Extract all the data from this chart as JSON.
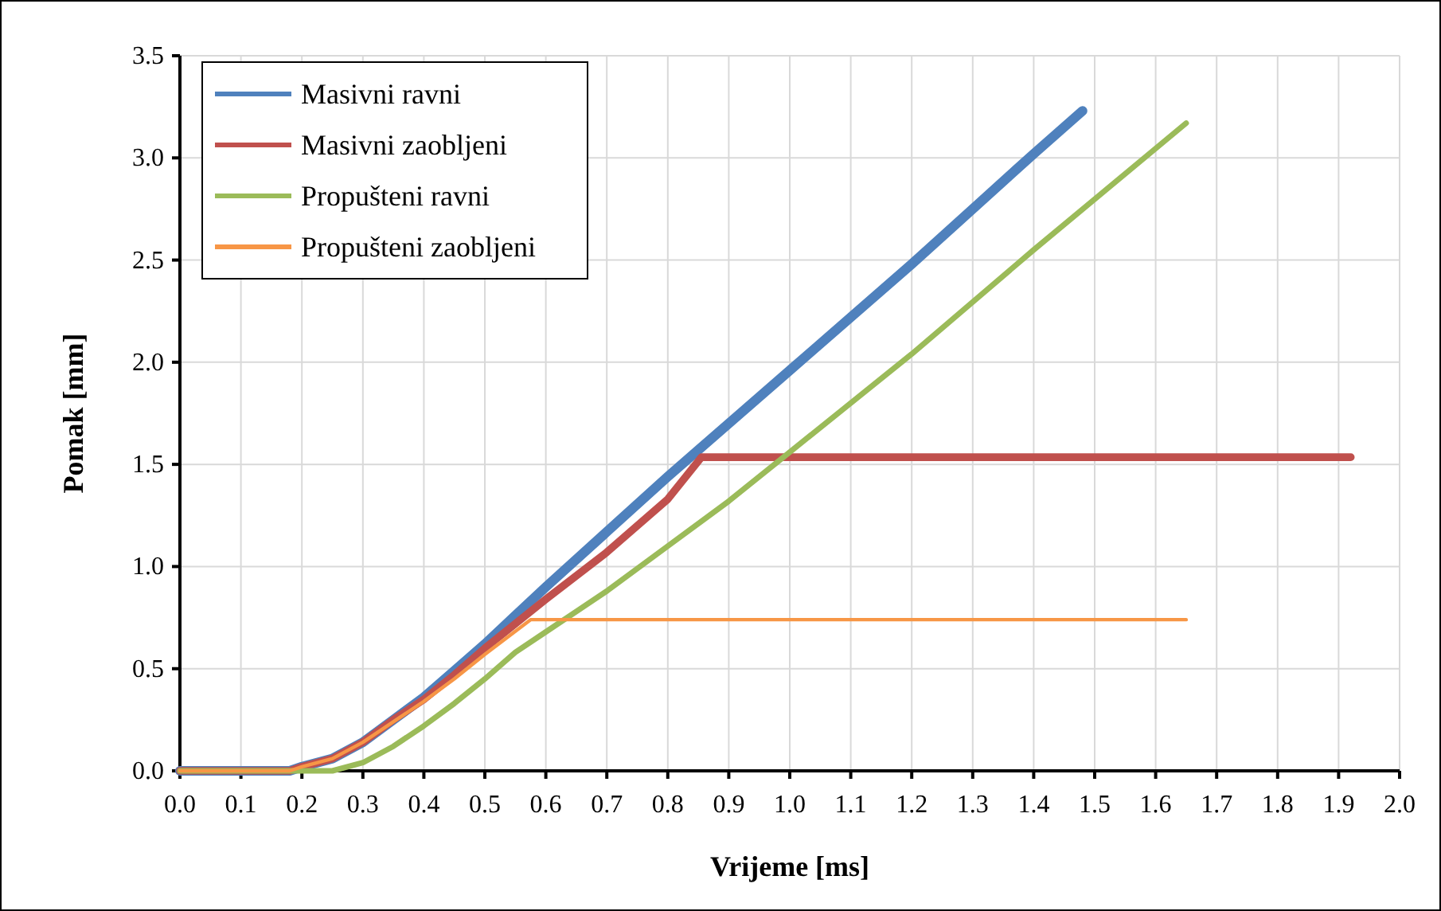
{
  "chart_data": {
    "type": "line",
    "xlabel": "Vrijeme [ms]",
    "ylabel": "Pomak [mm]",
    "xlim": [
      0,
      2
    ],
    "ylim": [
      0,
      3.5
    ],
    "xticks": [
      {
        "value": 0,
        "label": "0.0"
      },
      {
        "value": 0.1,
        "label": "0.1"
      },
      {
        "value": 0.2,
        "label": "0.2"
      },
      {
        "value": 0.3,
        "label": "0.3"
      },
      {
        "value": 0.4,
        "label": "0.4"
      },
      {
        "value": 0.5,
        "label": "0.5"
      },
      {
        "value": 0.6,
        "label": "0.6"
      },
      {
        "value": 0.7,
        "label": "0.7"
      },
      {
        "value": 0.8,
        "label": "0.8"
      },
      {
        "value": 0.9,
        "label": "0.9"
      },
      {
        "value": 1,
        "label": "1.0"
      },
      {
        "value": 1.1,
        "label": "1.1"
      },
      {
        "value": 1.2,
        "label": "1.2"
      },
      {
        "value": 1.3,
        "label": "1.3"
      },
      {
        "value": 1.4,
        "label": "1.4"
      },
      {
        "value": 1.5,
        "label": "1.5"
      },
      {
        "value": 1.6,
        "label": "1.6"
      },
      {
        "value": 1.7,
        "label": "1.7"
      },
      {
        "value": 1.8,
        "label": "1.8"
      },
      {
        "value": 1.9,
        "label": "1.9"
      },
      {
        "value": 2,
        "label": "2.0"
      }
    ],
    "yticks": [
      {
        "value": 0,
        "label": "0.0"
      },
      {
        "value": 0.5,
        "label": "0.5"
      },
      {
        "value": 1,
        "label": "1.0"
      },
      {
        "value": 1.5,
        "label": "1.5"
      },
      {
        "value": 2,
        "label": "2.0"
      },
      {
        "value": 2.5,
        "label": "2.5"
      },
      {
        "value": 3,
        "label": "3.0"
      },
      {
        "value": 3.5,
        "label": "3.5"
      }
    ],
    "grid": true,
    "legend": "top left",
    "marker": "none",
    "line_style": "solid",
    "series": [
      {
        "name": "Masivni ravni",
        "color": "#4f81bd",
        "x": [
          0,
          0.18,
          0.2,
          0.25,
          0.3,
          0.35,
          0.4,
          0.45,
          0.5,
          0.55,
          0.6,
          0.7,
          0.8,
          0.85,
          1.0,
          1.2,
          1.4,
          1.48
        ],
        "values": [
          0,
          0,
          0.02,
          0.06,
          0.14,
          0.25,
          0.36,
          0.49,
          0.62,
          0.76,
          0.9,
          1.17,
          1.44,
          1.57,
          1.96,
          2.48,
          3.02,
          3.23
        ]
      },
      {
        "name": "Masivni zaobljeni",
        "color": "#c0504d",
        "x": [
          0,
          0.18,
          0.2,
          0.25,
          0.3,
          0.35,
          0.4,
          0.45,
          0.5,
          0.55,
          0.6,
          0.7,
          0.8,
          0.855,
          1.92
        ],
        "values": [
          0,
          0,
          0.02,
          0.06,
          0.14,
          0.25,
          0.35,
          0.47,
          0.6,
          0.72,
          0.84,
          1.07,
          1.33,
          1.535,
          1.535
        ]
      },
      {
        "name": "Propušteni ravni",
        "color": "#9bbb59",
        "x": [
          0,
          0.25,
          0.3,
          0.35,
          0.4,
          0.45,
          0.5,
          0.55,
          0.6,
          0.7,
          0.8,
          0.9,
          1.0,
          1.2,
          1.4,
          1.65
        ],
        "values": [
          0,
          0,
          0.04,
          0.12,
          0.22,
          0.33,
          0.45,
          0.58,
          0.68,
          0.88,
          1.1,
          1.32,
          1.56,
          2.04,
          2.55,
          3.17
        ]
      },
      {
        "name": "Propušteni zaobljeni",
        "color": "#f79646",
        "x": [
          0,
          0.18,
          0.2,
          0.25,
          0.3,
          0.35,
          0.4,
          0.45,
          0.5,
          0.575,
          1.65
        ],
        "values": [
          0,
          0,
          0.02,
          0.06,
          0.14,
          0.24,
          0.34,
          0.45,
          0.57,
          0.74,
          0.74
        ]
      }
    ]
  }
}
